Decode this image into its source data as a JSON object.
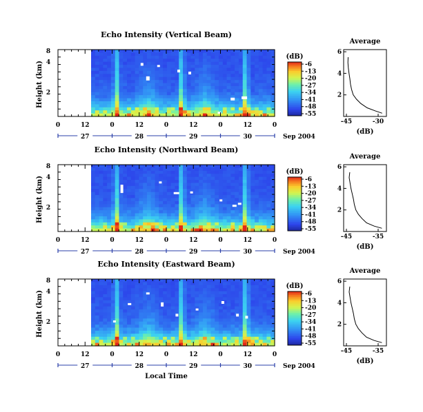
{
  "figure": {
    "xlabel": "Local Time",
    "colorbar_unit": "(dB)",
    "colorbar_ticks": [
      "-6",
      "-13",
      "-20",
      "-27",
      "-34",
      "-41",
      "-48",
      "-55"
    ],
    "date_suffix": "Sep 2004"
  },
  "chart_data": [
    {
      "type": "heatmap",
      "title": "Echo Intensity (Vertical Beam)",
      "ylabel": "Height (km)",
      "yticks": [
        "8",
        "4",
        "2"
      ],
      "xticks": [
        "0",
        "12",
        "0",
        "12",
        "0",
        "12",
        "0",
        "12",
        "0"
      ],
      "date_ticks": [
        "27",
        "28",
        "29",
        "30"
      ],
      "colorbar_range": [
        -55,
        -6
      ],
      "average": {
        "title": "Average",
        "xlabel": "(dB)",
        "xticks": [
          "-45",
          "-30"
        ],
        "yticks": [
          "6",
          "4",
          "2"
        ],
        "height_km": [
          0.3,
          0.5,
          0.8,
          1.2,
          1.6,
          2.0,
          2.5,
          3.0,
          3.5,
          4.0,
          4.5,
          5.0,
          5.5
        ],
        "db": [
          -30,
          -33,
          -37,
          -40,
          -42,
          -43.5,
          -44.3,
          -44.8,
          -45.1,
          -45.5,
          -45.8,
          -46,
          -45.9
        ]
      }
    },
    {
      "type": "heatmap",
      "title": "Echo Intensity (Northward Beam)",
      "ylabel": "Height (km)",
      "yticks": [
        "8",
        "4",
        "2"
      ],
      "xticks": [
        "0",
        "12",
        "0",
        "12",
        "0",
        "12",
        "0",
        "12",
        "0"
      ],
      "date_ticks": [
        "27",
        "28",
        "29",
        "30"
      ],
      "colorbar_range": [
        -55,
        -6
      ],
      "average": {
        "title": "Average",
        "xlabel": "(dB)",
        "xticks": [
          "-45",
          "-35"
        ],
        "yticks": [
          "6",
          "4",
          "2"
        ],
        "height_km": [
          0.3,
          0.5,
          0.8,
          1.2,
          1.6,
          2.0,
          2.5,
          3.0,
          3.5,
          4.0,
          4.5,
          5.0,
          5.5
        ],
        "db": [
          -35.5,
          -38,
          -40.5,
          -42,
          -43.2,
          -44,
          -44.5,
          -44.8,
          -45.2,
          -45.6,
          -45.9,
          -46.2,
          -46
        ]
      }
    },
    {
      "type": "heatmap",
      "title": "Echo Intensity (Eastward Beam)",
      "ylabel": "Height (km)",
      "yticks": [
        "8",
        "4",
        "2"
      ],
      "xticks": [
        "0",
        "12",
        "0",
        "12",
        "0",
        "12",
        "0",
        "12",
        "0"
      ],
      "date_ticks": [
        "27",
        "28",
        "29",
        "30"
      ],
      "colorbar_range": [
        -55,
        -6
      ],
      "average": {
        "title": "Average",
        "xlabel": "(dB)",
        "xticks": [
          "-45",
          "-35"
        ],
        "yticks": [
          "6",
          "4",
          "2"
        ],
        "height_km": [
          0.3,
          0.5,
          0.8,
          1.2,
          1.6,
          2.0,
          2.5,
          3.0,
          3.5,
          4.0,
          4.5,
          5.0,
          5.5
        ],
        "db": [
          -35.5,
          -38,
          -40.5,
          -42,
          -43.2,
          -44,
          -44.5,
          -44.8,
          -45.2,
          -45.6,
          -45.9,
          -46.2,
          -46
        ]
      }
    }
  ]
}
